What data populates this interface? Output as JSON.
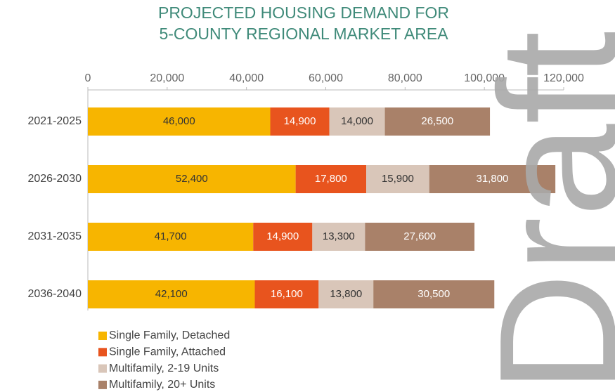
{
  "chart_data": {
    "type": "stacked_barh",
    "title": [
      "PROJECTED HOUSING DEMAND FOR",
      "5-COUNTY REGIONAL MARKET AREA"
    ],
    "categories": [
      "2021-2025",
      "2026-2030",
      "2031-2035",
      "2036-2040"
    ],
    "series": [
      {
        "name": "Single Family, Detached",
        "color": "#f7b500",
        "label_color": "#333333",
        "values": [
          46000,
          52400,
          41700,
          42100
        ],
        "value_labels": [
          "46,000",
          "52,400",
          "41,700",
          "42,100"
        ]
      },
      {
        "name": "Single Family, Attached",
        "color": "#e8541e",
        "label_color": "#ffffff",
        "values": [
          14900,
          17800,
          14900,
          16100
        ],
        "value_labels": [
          "14,900",
          "17,800",
          "14,900",
          "16,100"
        ]
      },
      {
        "name": "Multifamily, 2-19 Units",
        "color": "#d9c6b9",
        "label_color": "#333333",
        "values": [
          14000,
          15900,
          13300,
          13800
        ],
        "value_labels": [
          "14,000",
          "15,900",
          "13,300",
          "13,800"
        ]
      },
      {
        "name": "Multifamily, 20+ Units",
        "color": "#a98169",
        "label_color": "#ffffff",
        "values": [
          26500,
          31800,
          27600,
          30500
        ],
        "value_labels": [
          "26,500",
          "31,800",
          "27,600",
          "30,500"
        ]
      }
    ],
    "xlim": [
      0,
      120000
    ],
    "xticks": [
      0,
      {
        "value": 20000,
        "label": "20,000"
      },
      {
        "value": 40000,
        "label": "40,000"
      },
      {
        "value": 60000,
        "label": "60,000"
      },
      {
        "value": 80000,
        "label": "80,000"
      },
      {
        "value": 100000,
        "label": "100,000"
      },
      {
        "value": 120000,
        "label": "120,000"
      }
    ],
    "legend": "bottom-left",
    "watermark": "Draft"
  }
}
